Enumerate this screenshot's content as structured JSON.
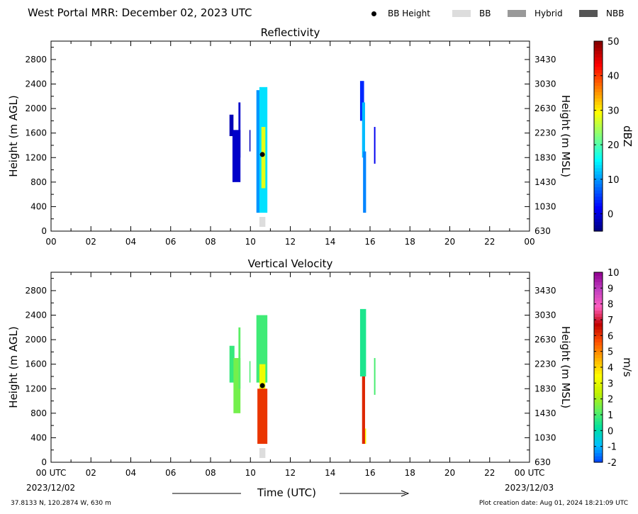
{
  "header": {
    "title": "West Portal MRR:  December 02, 2023 UTC",
    "legend": [
      {
        "label": "BB Height",
        "icon": "black-dot",
        "color": "#000000"
      },
      {
        "label": "BB",
        "icon": "swatch",
        "color": "#dddddd"
      },
      {
        "label": "Hybrid",
        "icon": "swatch",
        "color": "#999999"
      },
      {
        "label": "NBB",
        "icon": "swatch",
        "color": "#555555"
      }
    ]
  },
  "footer": {
    "coords": "37.8133 N, 120.2874 W, 630 m",
    "created": "Plot creation date: Aug 01, 2024 18:21:09 UTC",
    "xlabel": "Time (UTC)",
    "date_start": "2023/12/02",
    "date_end": "2023/12/03"
  },
  "chart_data": [
    {
      "type": "heatmap",
      "title": "Reflectivity",
      "ylabel": "Height (m AGL)",
      "y2label": "Height (m MSL)",
      "ylim": [
        0,
        3100
      ],
      "y2_offset": 630,
      "xlim": [
        0,
        24
      ],
      "x_ticks": [
        "00",
        "02",
        "04",
        "06",
        "08",
        "10",
        "12",
        "14",
        "16",
        "18",
        "20",
        "22",
        "00"
      ],
      "y_ticks": [
        0,
        400,
        800,
        1200,
        1600,
        2000,
        2400,
        2800
      ],
      "y2_ticks": [
        630,
        1030,
        1430,
        1830,
        2230,
        2630,
        3030,
        3430
      ],
      "colorbar": {
        "label": "dBZ",
        "min": -5,
        "max": 50,
        "ticks": [
          0,
          10,
          20,
          30,
          40,
          50
        ],
        "colormap": [
          "#00007f",
          "#0000ff",
          "#007fff",
          "#00ffff",
          "#7fff7f",
          "#ffff00",
          "#ff7f00",
          "#ff0000",
          "#7f0000"
        ]
      },
      "bright_band": {
        "time_utc": 10.6,
        "height_m_agl": 1250,
        "bb_marker_time": [
          10.45,
          10.75
        ]
      },
      "echoes": [
        {
          "t_start": 8.95,
          "t_end": 9.15,
          "h_bottom": 1550,
          "h_top": 1900,
          "dbz": -2
        },
        {
          "t_start": 9.1,
          "t_end": 9.5,
          "h_bottom": 800,
          "h_top": 1650,
          "dbz": -1
        },
        {
          "t_start": 9.4,
          "t_end": 9.5,
          "h_bottom": 1200,
          "h_top": 2100,
          "dbz": -1
        },
        {
          "t_start": 9.95,
          "t_end": 10.0,
          "h_bottom": 1300,
          "h_top": 1650,
          "dbz": -2
        },
        {
          "t_start": 10.3,
          "t_end": 10.5,
          "h_bottom": 300,
          "h_top": 2300,
          "dbz": 10
        },
        {
          "t_start": 10.45,
          "t_end": 10.85,
          "h_bottom": 300,
          "h_top": 2350,
          "dbz": 14
        },
        {
          "t_start": 10.55,
          "t_end": 10.75,
          "h_bottom": 700,
          "h_top": 1700,
          "dbz": 28
        },
        {
          "t_start": 15.5,
          "t_end": 15.7,
          "h_bottom": 1800,
          "h_top": 2450,
          "dbz": 4
        },
        {
          "t_start": 15.6,
          "t_end": 15.75,
          "h_bottom": 1200,
          "h_top": 2100,
          "dbz": 12
        },
        {
          "t_start": 15.65,
          "t_end": 15.8,
          "h_bottom": 300,
          "h_top": 1300,
          "dbz": 9
        },
        {
          "t_start": 16.2,
          "t_end": 16.27,
          "h_bottom": 1100,
          "h_top": 1700,
          "dbz": 1
        }
      ]
    },
    {
      "type": "heatmap",
      "title": "Vertical Velocity",
      "ylabel": "Height (m AGL)",
      "y2label": "Height (m MSL)",
      "ylim": [
        0,
        3100
      ],
      "y2_offset": 630,
      "xlim": [
        0,
        24
      ],
      "x_ticks": [
        "00 UTC",
        "02",
        "04",
        "06",
        "08",
        "10",
        "12",
        "14",
        "16",
        "18",
        "20",
        "22",
        "00 UTC"
      ],
      "y_ticks": [
        0,
        400,
        800,
        1200,
        1600,
        2000,
        2400,
        2800
      ],
      "y2_ticks": [
        630,
        1030,
        1430,
        1830,
        2230,
        2630,
        3030,
        3430
      ],
      "colorbar": {
        "label": "m/s",
        "min": -2,
        "max": 10,
        "ticks": [
          -2,
          -1,
          0,
          1,
          2,
          3,
          4,
          5,
          6,
          7,
          8,
          9,
          10
        ],
        "colormap": [
          "#0040ff",
          "#00c0ff",
          "#00e0a0",
          "#60f060",
          "#c0f000",
          "#ffff00",
          "#ffb000",
          "#ff5000",
          "#c00000",
          "#ff60c0",
          "#c040c0",
          "#900090"
        ]
      },
      "bright_band": {
        "time_utc": 10.6,
        "height_m_agl": 1250,
        "bb_marker_time": [
          10.45,
          10.75
        ]
      },
      "echoes": [
        {
          "t_start": 8.95,
          "t_end": 9.2,
          "h_bottom": 1300,
          "h_top": 1900,
          "ms": 0.8
        },
        {
          "t_start": 9.15,
          "t_end": 9.5,
          "h_bottom": 800,
          "h_top": 1700,
          "ms": 1.5
        },
        {
          "t_start": 9.4,
          "t_end": 9.5,
          "h_bottom": 1200,
          "h_top": 2200,
          "ms": 1.2
        },
        {
          "t_start": 9.95,
          "t_end": 10.0,
          "h_bottom": 1300,
          "h_top": 1650,
          "ms": 1.0
        },
        {
          "t_start": 10.3,
          "t_end": 10.85,
          "h_bottom": 1300,
          "h_top": 2400,
          "ms": 0.9
        },
        {
          "t_start": 10.45,
          "t_end": 10.75,
          "h_bottom": 1100,
          "h_top": 1600,
          "ms": 3.2
        },
        {
          "t_start": 10.35,
          "t_end": 10.85,
          "h_bottom": 300,
          "h_top": 1200,
          "ms": 6.0
        },
        {
          "t_start": 15.5,
          "t_end": 15.8,
          "h_bottom": 1400,
          "h_top": 2500,
          "ms": 0.5
        },
        {
          "t_start": 15.6,
          "t_end": 15.75,
          "h_bottom": 300,
          "h_top": 1400,
          "ms": 6.2
        },
        {
          "t_start": 15.75,
          "t_end": 15.8,
          "h_bottom": 300,
          "h_top": 550,
          "ms": 3.5
        },
        {
          "t_start": 16.2,
          "t_end": 16.27,
          "h_bottom": 1100,
          "h_top": 1700,
          "ms": 1.0
        }
      ]
    }
  ]
}
